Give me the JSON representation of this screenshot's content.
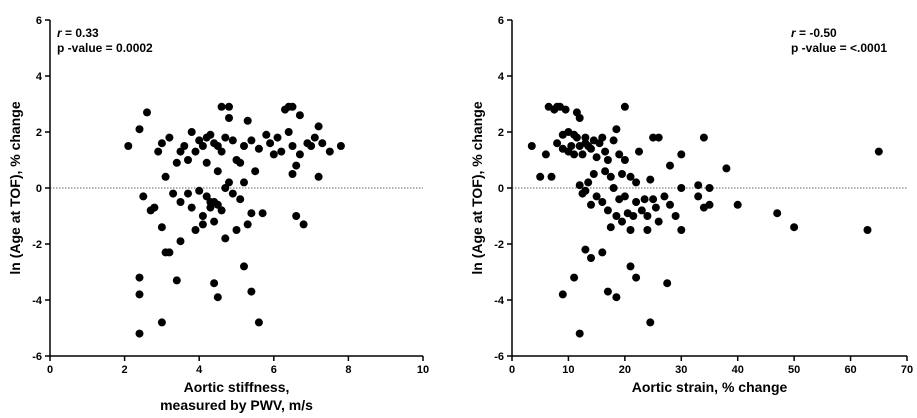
{
  "chart_data": [
    {
      "type": "scatter",
      "xlabel": "Aortic stiffness,",
      "xlabel_line2": "measured by PWV, m/s",
      "ylabel": "ln (Age at TOF), % change",
      "xlim": [
        0,
        10
      ],
      "ylim": [
        -6,
        6
      ],
      "xticks": [
        0,
        2,
        4,
        6,
        8,
        10
      ],
      "yticks": [
        -6,
        -4,
        -2,
        0,
        2,
        4,
        6
      ],
      "reference_line_y": 0,
      "stats": {
        "r_label": "r",
        "r_value": " = 0.33",
        "p_text": "p -value = 0.0002"
      },
      "points": [
        [
          2.1,
          1.5
        ],
        [
          2.4,
          2.1
        ],
        [
          2.6,
          2.7
        ],
        [
          2.5,
          -0.3
        ],
        [
          2.7,
          -0.8
        ],
        [
          2.8,
          -0.7
        ],
        [
          2.9,
          1.3
        ],
        [
          3.0,
          1.6
        ],
        [
          3.0,
          -1.4
        ],
        [
          3.1,
          -2.3
        ],
        [
          3.2,
          -2.3
        ],
        [
          3.2,
          1.8
        ],
        [
          3.1,
          0.4
        ],
        [
          3.3,
          -0.2
        ],
        [
          3.4,
          0.9
        ],
        [
          3.5,
          1.3
        ],
        [
          3.5,
          -1.9
        ],
        [
          3.5,
          -0.5
        ],
        [
          3.6,
          1.5
        ],
        [
          3.7,
          1.0
        ],
        [
          3.7,
          -0.2
        ],
        [
          3.8,
          2.0
        ],
        [
          3.8,
          -0.7
        ],
        [
          3.9,
          -1.5
        ],
        [
          3.9,
          1.3
        ],
        [
          4.0,
          1.7
        ],
        [
          4.0,
          -0.1
        ],
        [
          4.1,
          1.5
        ],
        [
          4.1,
          -1.3
        ],
        [
          4.1,
          -1.0
        ],
        [
          4.2,
          1.8
        ],
        [
          4.2,
          0.9
        ],
        [
          4.2,
          -0.3
        ],
        [
          4.3,
          1.9
        ],
        [
          4.3,
          -0.5
        ],
        [
          4.3,
          -0.7
        ],
        [
          4.4,
          1.6
        ],
        [
          4.4,
          -0.5
        ],
        [
          4.4,
          -1.2
        ],
        [
          4.5,
          1.5
        ],
        [
          4.5,
          0.6
        ],
        [
          4.5,
          -0.6
        ],
        [
          4.6,
          2.9
        ],
        [
          4.6,
          1.3
        ],
        [
          4.6,
          -0.8
        ],
        [
          4.7,
          1.8
        ],
        [
          4.7,
          0.0
        ],
        [
          4.7,
          -1.8
        ],
        [
          4.8,
          2.9
        ],
        [
          4.8,
          2.5
        ],
        [
          4.8,
          0.2
        ],
        [
          4.9,
          1.7
        ],
        [
          4.9,
          -0.2
        ],
        [
          5.0,
          1.0
        ],
        [
          5.0,
          -1.5
        ],
        [
          5.1,
          0.9
        ],
        [
          5.1,
          -0.4
        ],
        [
          5.2,
          1.5
        ],
        [
          5.2,
          0.2
        ],
        [
          5.3,
          2.4
        ],
        [
          5.3,
          -1.3
        ],
        [
          5.4,
          1.7
        ],
        [
          5.4,
          -0.9
        ],
        [
          5.5,
          0.6
        ],
        [
          5.6,
          1.4
        ],
        [
          5.7,
          -0.9
        ],
        [
          5.8,
          1.9
        ],
        [
          5.9,
          1.6
        ],
        [
          6.0,
          1.2
        ],
        [
          6.1,
          1.8
        ],
        [
          6.2,
          1.3
        ],
        [
          6.3,
          2.8
        ],
        [
          6.4,
          2.9
        ],
        [
          6.4,
          2.0
        ],
        [
          6.5,
          2.9
        ],
        [
          6.5,
          1.5
        ],
        [
          6.5,
          0.5
        ],
        [
          6.6,
          0.8
        ],
        [
          6.6,
          -1.0
        ],
        [
          6.7,
          2.6
        ],
        [
          6.7,
          1.2
        ],
        [
          6.9,
          1.6
        ],
        [
          7.0,
          1.5
        ],
        [
          7.1,
          1.8
        ],
        [
          7.2,
          2.2
        ],
        [
          7.2,
          0.4
        ],
        [
          7.3,
          1.6
        ],
        [
          7.5,
          1.3
        ],
        [
          7.8,
          1.5
        ],
        [
          6.8,
          -1.3
        ],
        [
          2.4,
          -3.2
        ],
        [
          2.4,
          -3.8
        ],
        [
          2.4,
          -5.2
        ],
        [
          3.0,
          -4.8
        ],
        [
          3.4,
          -3.3
        ],
        [
          4.4,
          -3.4
        ],
        [
          4.5,
          -3.9
        ],
        [
          5.2,
          -2.8
        ],
        [
          5.4,
          -3.7
        ],
        [
          5.6,
          -4.8
        ]
      ]
    },
    {
      "type": "scatter",
      "xlabel": "Aortic strain, % change",
      "ylabel": "ln (Age at TOF), % change",
      "xlim": [
        0,
        70
      ],
      "ylim": [
        -6,
        6
      ],
      "xticks": [
        0,
        10,
        20,
        30,
        40,
        50,
        60,
        70
      ],
      "yticks": [
        -6,
        -4,
        -2,
        0,
        2,
        4,
        6
      ],
      "reference_line_y": 0,
      "stats": {
        "r_label": "r",
        "r_value": " = -0.50",
        "p_text": "p -value = <.0001"
      },
      "points": [
        [
          3.5,
          1.5
        ],
        [
          5,
          0.4
        ],
        [
          6,
          1.2
        ],
        [
          6.5,
          2.9
        ],
        [
          7,
          0.4
        ],
        [
          7.5,
          2.8
        ],
        [
          8,
          1.6
        ],
        [
          8,
          2.9
        ],
        [
          8.5,
          2.9
        ],
        [
          9,
          1.4
        ],
        [
          9,
          1.9
        ],
        [
          9.5,
          2.8
        ],
        [
          10,
          1.3
        ],
        [
          10,
          2.0
        ],
        [
          10.5,
          1.5
        ],
        [
          11,
          1.2
        ],
        [
          11,
          1.9
        ],
        [
          11.5,
          1.8
        ],
        [
          11.5,
          2.7
        ],
        [
          12,
          2.5
        ],
        [
          12,
          1.5
        ],
        [
          12,
          0.1
        ],
        [
          12.5,
          1.2
        ],
        [
          12.5,
          -0.2
        ],
        [
          13,
          1.6
        ],
        [
          13,
          1.8
        ],
        [
          13,
          -0.1
        ],
        [
          13.5,
          1.5
        ],
        [
          13.5,
          0.2
        ],
        [
          14,
          1.4
        ],
        [
          14,
          -0.6
        ],
        [
          14.5,
          1.7
        ],
        [
          14.5,
          0.5
        ],
        [
          15,
          1.1
        ],
        [
          15,
          -0.3
        ],
        [
          15.5,
          1.6
        ],
        [
          16,
          1.8
        ],
        [
          16,
          -0.5
        ],
        [
          16.5,
          1.3
        ],
        [
          16.5,
          0.6
        ],
        [
          17,
          1.0
        ],
        [
          17,
          -0.8
        ],
        [
          17.5,
          0.4
        ],
        [
          17.5,
          -1.4
        ],
        [
          18,
          1.7
        ],
        [
          18,
          0.0
        ],
        [
          18.5,
          2.1
        ],
        [
          18.5,
          -1.0
        ],
        [
          19,
          1.2
        ],
        [
          19,
          -0.4
        ],
        [
          19.5,
          0.5
        ],
        [
          19.5,
          -1.2
        ],
        [
          20,
          2.9
        ],
        [
          20,
          1.0
        ],
        [
          20,
          -0.3
        ],
        [
          20.5,
          -0.9
        ],
        [
          21,
          0.4
        ],
        [
          21,
          -1.5
        ],
        [
          21.5,
          -1.0
        ],
        [
          22,
          0.2
        ],
        [
          22,
          -0.5
        ],
        [
          22.5,
          1.3
        ],
        [
          23,
          -0.8
        ],
        [
          23.5,
          -0.4
        ],
        [
          24,
          -1.0
        ],
        [
          24,
          -1.5
        ],
        [
          24.5,
          0.3
        ],
        [
          25,
          1.8
        ],
        [
          25,
          -0.4
        ],
        [
          25.5,
          -0.7
        ],
        [
          26,
          1.8
        ],
        [
          26,
          -1.2
        ],
        [
          27,
          -0.3
        ],
        [
          28,
          -0.6
        ],
        [
          28,
          0.8
        ],
        [
          29,
          -1.0
        ],
        [
          30,
          1.2
        ],
        [
          30,
          -1.5
        ],
        [
          30,
          0.0
        ],
        [
          33,
          -0.3
        ],
        [
          33,
          0.1
        ],
        [
          34,
          -0.7
        ],
        [
          34,
          1.8
        ],
        [
          35,
          -0.6
        ],
        [
          35,
          0.0
        ],
        [
          38,
          0.7
        ],
        [
          40,
          -0.6
        ],
        [
          47,
          -0.9
        ],
        [
          50,
          -1.4
        ],
        [
          63,
          -1.5
        ],
        [
          65,
          1.3
        ],
        [
          9,
          -3.8
        ],
        [
          11,
          -3.2
        ],
        [
          12,
          -5.2
        ],
        [
          13,
          -2.2
        ],
        [
          14,
          -2.5
        ],
        [
          16,
          -2.3
        ],
        [
          17,
          -3.7
        ],
        [
          18.5,
          -3.9
        ],
        [
          21,
          -2.8
        ],
        [
          22,
          -3.2
        ],
        [
          24.5,
          -4.8
        ],
        [
          27.5,
          -3.4
        ]
      ]
    }
  ]
}
